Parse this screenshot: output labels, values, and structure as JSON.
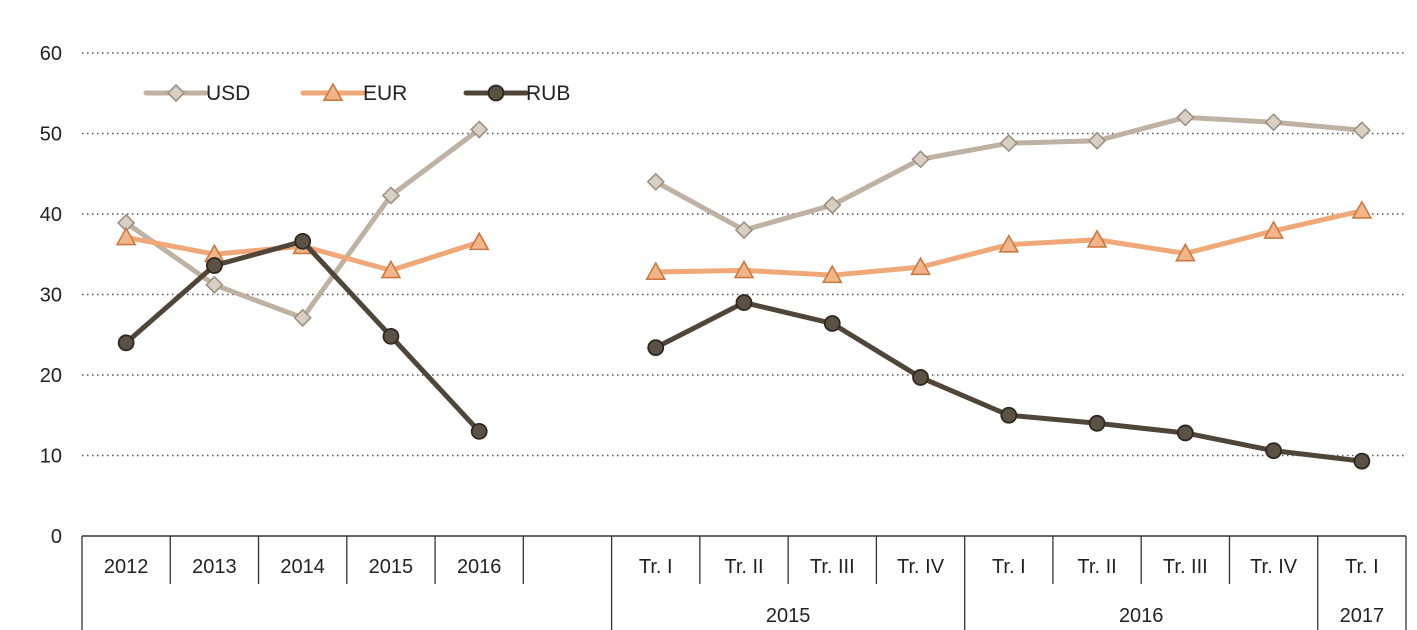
{
  "chart_data": {
    "type": "line",
    "title": "",
    "xlabel": "",
    "ylabel": "",
    "ylim": [
      0,
      60
    ],
    "yticks": [
      "0",
      "10",
      "20",
      "30",
      "40",
      "50",
      "60"
    ],
    "grid": "horizontal dotted",
    "legend_position": "top-left",
    "categories": [
      "2012",
      "2013",
      "2014",
      "2015",
      "2016",
      "",
      "Tr. I",
      "Tr. II",
      "Tr. III",
      "Tr. IV",
      "Tr. I",
      "Tr. II",
      "Tr. III",
      "Tr. IV",
      "Tr. I"
    ],
    "year_groups": [
      {
        "label": "2015",
        "start": 6,
        "end": 9
      },
      {
        "label": "2016",
        "start": 10,
        "end": 13
      },
      {
        "label": "2017",
        "start": 14,
        "end": 14
      }
    ],
    "series": [
      {
        "name": "USD",
        "color": "#bfb2a2",
        "marker": "diamond",
        "segments": [
          {
            "start": 0,
            "values": [
              38.9,
              31.2,
              27.1,
              42.3,
              50.5
            ]
          },
          {
            "start": 6,
            "values": [
              44.0,
              38.0,
              41.1,
              46.8,
              48.8,
              49.1,
              52.0,
              51.4,
              50.4
            ]
          }
        ]
      },
      {
        "name": "EUR",
        "color": "#f0a878",
        "marker": "triangle",
        "segments": [
          {
            "start": 0,
            "values": [
              37.1,
              35.0,
              36.0,
              33.0,
              36.5
            ]
          },
          {
            "start": 6,
            "values": [
              32.8,
              33.0,
              32.4,
              33.4,
              36.2,
              36.8,
              35.1,
              37.9,
              40.4
            ]
          }
        ]
      },
      {
        "name": "RUB",
        "color": "#4f4539",
        "marker": "circle",
        "segments": [
          {
            "start": 0,
            "values": [
              24.0,
              33.6,
              36.6,
              24.8,
              13.0
            ]
          },
          {
            "start": 6,
            "values": [
              23.4,
              29.0,
              26.4,
              19.7,
              15.0,
              14.0,
              12.8,
              10.6,
              9.3
            ]
          }
        ]
      }
    ]
  }
}
